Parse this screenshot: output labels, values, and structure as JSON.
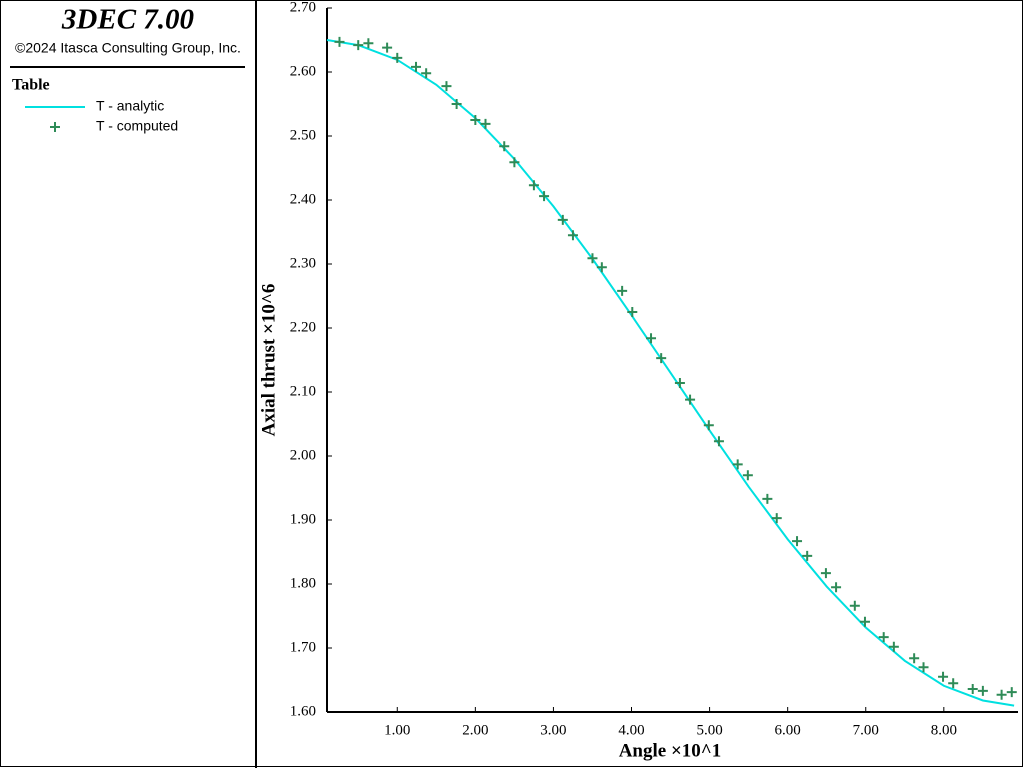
{
  "chart_data": {
    "type": "line",
    "title": "3DEC 7.00",
    "subtitle": "©2024 Itasca Consulting Group, Inc.",
    "legend_title": "Table",
    "x_label": "Angle ×10^1",
    "y_label": "Axial thrust ×10^6",
    "xlim": [
      0.1,
      8.95
    ],
    "ylim": [
      1.6,
      2.7
    ],
    "xticks": [
      {
        "value": 1,
        "label": "1.00"
      },
      {
        "value": 2,
        "label": "2.00"
      },
      {
        "value": 3,
        "label": "3.00"
      },
      {
        "value": 4,
        "label": "4.00"
      },
      {
        "value": 5,
        "label": "5.00"
      },
      {
        "value": 6,
        "label": "6.00"
      },
      {
        "value": 7,
        "label": "7.00"
      },
      {
        "value": 8,
        "label": "8.00"
      }
    ],
    "yticks": [
      {
        "value": 1.6,
        "label": "1.60"
      },
      {
        "value": 1.7,
        "label": "1.70"
      },
      {
        "value": 1.8,
        "label": "1.80"
      },
      {
        "value": 1.9,
        "label": "1.90"
      },
      {
        "value": 2.0,
        "label": "2.00"
      },
      {
        "value": 2.1,
        "label": "2.10"
      },
      {
        "value": 2.2,
        "label": "2.20"
      },
      {
        "value": 2.3,
        "label": "2.30"
      },
      {
        "value": 2.4,
        "label": "2.40"
      },
      {
        "value": 2.5,
        "label": "2.50"
      },
      {
        "value": 2.6,
        "label": "2.60"
      },
      {
        "value": 2.7,
        "label": "2.70"
      }
    ],
    "series": [
      {
        "name": "T - analytic",
        "color": "#00e0e0",
        "style": "line",
        "x": [
          0.1,
          0.5,
          1,
          1.5,
          2,
          2.5,
          3,
          3.5,
          4,
          4.5,
          5,
          5.5,
          6,
          6.5,
          7,
          7.5,
          8,
          8.5,
          8.9
        ],
        "values": [
          2.65,
          2.642,
          2.619,
          2.58,
          2.528,
          2.464,
          2.39,
          2.308,
          2.22,
          2.13,
          2.04,
          1.952,
          1.87,
          1.796,
          1.732,
          1.68,
          1.641,
          1.618,
          1.61
        ]
      },
      {
        "name": "T - computed",
        "color": "#2e8b57",
        "style": "marker",
        "x": [
          0.26,
          0.5,
          0.63,
          0.87,
          1.0,
          1.24,
          1.37,
          1.63,
          1.76,
          2.0,
          2.13,
          2.37,
          2.5,
          2.75,
          2.88,
          3.12,
          3.25,
          3.5,
          3.62,
          3.88,
          4.01,
          4.25,
          4.38,
          4.62,
          4.75,
          4.99,
          5.12,
          5.36,
          5.49,
          5.74,
          5.86,
          6.12,
          6.25,
          6.49,
          6.62,
          6.86,
          6.99,
          7.23,
          7.36,
          7.62,
          7.74,
          7.99,
          8.12,
          8.37,
          8.5,
          8.74,
          8.87
        ],
        "values": [
          2.647,
          2.642,
          2.645,
          2.638,
          2.622,
          2.608,
          2.598,
          2.578,
          2.55,
          2.525,
          2.519,
          2.484,
          2.459,
          2.423,
          2.406,
          2.369,
          2.345,
          2.309,
          2.295,
          2.258,
          2.225,
          2.184,
          2.153,
          2.114,
          2.088,
          2.048,
          2.023,
          1.987,
          1.97,
          1.933,
          1.903,
          1.867,
          1.844,
          1.817,
          1.795,
          1.766,
          1.741,
          1.717,
          1.702,
          1.684,
          1.67,
          1.655,
          1.645,
          1.636,
          1.633,
          1.627,
          1.631
        ]
      }
    ]
  }
}
